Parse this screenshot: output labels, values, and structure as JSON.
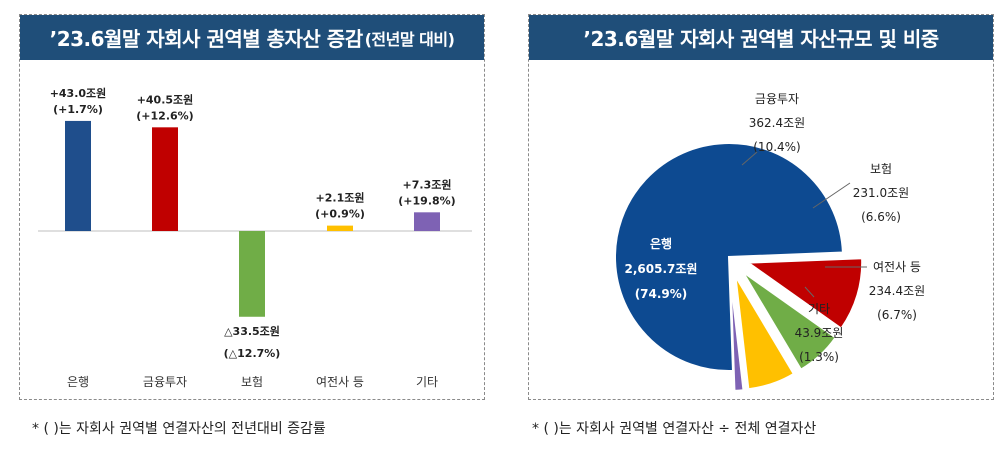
{
  "left_panel": {
    "title": "’23.6월말 자회사 권역별 총자산 증감",
    "title_suffix": "(전년말 대비)",
    "footnote": "* ( )는 자회사 권역별 연결자산의 전년대비 증감률"
  },
  "right_panel": {
    "title": "’23.6월말 자회사 권역별 자산규모 및 비중",
    "footnote": "* ( )는 자회사 권역별 연결자산 ÷ 전체 연결자산"
  },
  "chart_data": [
    {
      "type": "bar",
      "categories": [
        "은행",
        "금융투자",
        "보험",
        "여전사 등",
        "기타"
      ],
      "values": [
        43.0,
        40.5,
        -33.5,
        2.1,
        7.3
      ],
      "value_labels": [
        "+43.0조원",
        "+40.5조원",
        "△33.5조원",
        "+2.1조원",
        "+7.3조원"
      ],
      "pct_labels": [
        "(+1.7%)",
        "(+12.6%)",
        "(△12.7%)",
        "(+0.9%)",
        "(+19.8%)"
      ],
      "colors": [
        "#1f4e8c",
        "#c00000",
        "#70ad47",
        "#ffc000",
        "#7e62b4"
      ]
    },
    {
      "type": "pie",
      "labels": [
        "은행",
        "금융투자",
        "보험",
        "여전사 등",
        "기타"
      ],
      "values": [
        2605.7,
        362.4,
        231.0,
        234.4,
        43.9
      ],
      "value_labels": [
        "2,605.7조원",
        "362.4조원",
        "231.0조원",
        "234.4조원",
        "43.9조원"
      ],
      "percent_labels": [
        "(74.9%)",
        "(10.4%)",
        "(6.6%)",
        "(6.7%)",
        "(1.3%)"
      ],
      "colors": [
        "#0d4a91",
        "#c00000",
        "#70ad47",
        "#ffc000",
        "#7e62b4"
      ]
    }
  ]
}
